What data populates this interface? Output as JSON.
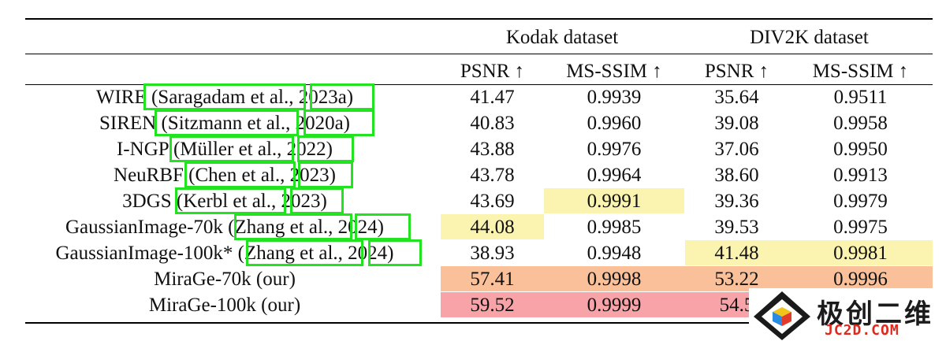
{
  "table": {
    "groups": [
      "Kodak dataset",
      "DIV2K dataset"
    ],
    "metrics": [
      "PSNR ↑",
      "MS-SSIM ↑",
      "PSNR ↑",
      "MS-SSIM ↑"
    ],
    "rows": [
      {
        "method": "WIRE (Saragadam et al., 2023a)",
        "values": [
          "41.47",
          "0.9939",
          "35.64",
          "0.9511"
        ]
      },
      {
        "method": "SIREN (Sitzmann et al., 2020a)",
        "values": [
          "40.83",
          "0.9960",
          "39.08",
          "0.9958"
        ]
      },
      {
        "method": "I-NGP (Müller et al., 2022)",
        "values": [
          "43.88",
          "0.9976",
          "37.06",
          "0.9950"
        ]
      },
      {
        "method": "NeuRBF (Chen et al., 2023)",
        "values": [
          "43.78",
          "0.9964",
          "38.60",
          "0.9913"
        ]
      },
      {
        "method": "3DGS (Kerbl et al., 2023)",
        "values": [
          "43.69",
          "0.9991",
          "39.36",
          "0.9979"
        ]
      },
      {
        "method": "GaussianImage-70k (Zhang et al., 2024)",
        "values": [
          "44.08",
          "0.9985",
          "39.53",
          "0.9975"
        ]
      },
      {
        "method": "GaussianImage-100k* (Zhang et al., 2024)",
        "values": [
          "38.93",
          "0.9948",
          "41.48",
          "0.9981"
        ]
      },
      {
        "method": "MiraGe-70k (our)",
        "values": [
          "57.41",
          "0.9998",
          "53.22",
          "0.9996"
        ]
      },
      {
        "method": "MiraGe-100k (our)",
        "values": [
          "59.52",
          "0.9999",
          "54.5",
          ""
        ]
      }
    ],
    "highlight_colors": {
      "first": "#f7a3a7",
      "second": "#f9c09a",
      "third": "#fbf3b0"
    },
    "citation_box_color": "#22e31f"
  },
  "watermark": {
    "text": "极创二维",
    "url": "JC2D.COM"
  }
}
